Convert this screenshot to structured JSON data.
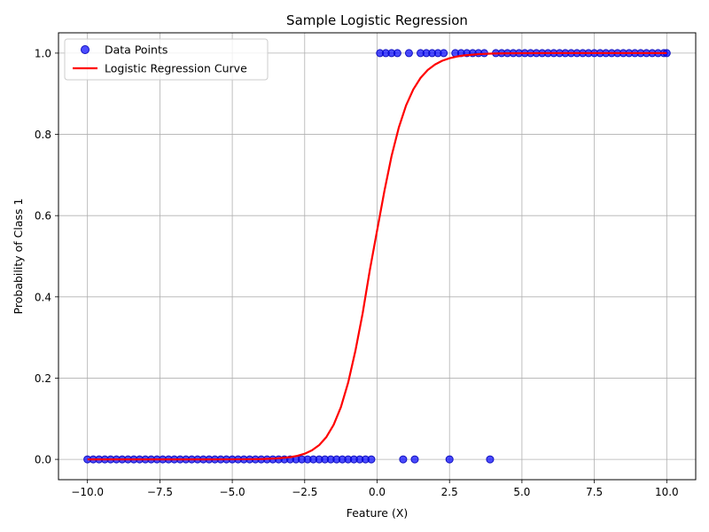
{
  "chart_data": {
    "type": "scatter",
    "title": "Sample Logistic Regression",
    "xlabel": "Feature (X)",
    "ylabel": "Probability of Class 1",
    "xlim": [
      -11,
      11
    ],
    "ylim": [
      -0.05,
      1.05
    ],
    "xticks": [
      -10.0,
      -7.5,
      -5.0,
      -2.5,
      0.0,
      2.5,
      5.0,
      7.5,
      10.0
    ],
    "xtick_labels": [
      "−10.0",
      "−7.5",
      "−5.0",
      "−2.5",
      "0.0",
      "2.5",
      "5.0",
      "7.5",
      "10.0"
    ],
    "yticks": [
      0.0,
      0.2,
      0.4,
      0.6,
      0.8,
      1.0
    ],
    "ytick_labels": [
      "0.0",
      "0.2",
      "0.4",
      "0.6",
      "0.8",
      "1.0"
    ],
    "grid": true,
    "legend_position": "upper-left",
    "legend": [
      "Data Points",
      "Logistic Regression Curve"
    ],
    "series": [
      {
        "name": "Data Points",
        "kind": "scatter",
        "color": "#0000ff",
        "edge_color": "#1010c0",
        "x": [
          -10.0,
          -9.8,
          -9.6,
          -9.4,
          -9.2,
          -9.0,
          -8.8,
          -8.6,
          -8.4,
          -8.2,
          -8.0,
          -7.8,
          -7.6,
          -7.4,
          -7.2,
          -7.0,
          -6.8,
          -6.6,
          -6.4,
          -6.2,
          -6.0,
          -5.8,
          -5.6,
          -5.4,
          -5.2,
          -5.0,
          -4.8,
          -4.6,
          -4.4,
          -4.2,
          -4.0,
          -3.8,
          -3.6,
          -3.4,
          -3.2,
          -3.0,
          -2.8,
          -2.6,
          -2.4,
          -2.2,
          -2.0,
          -1.8,
          -1.6,
          -1.4,
          -1.2,
          -1.0,
          -0.8,
          -0.6,
          -0.4,
          -0.2,
          0.9,
          1.3,
          2.5,
          3.9,
          0.1,
          0.3,
          0.5,
          0.7,
          1.1,
          1.5,
          1.7,
          1.9,
          2.1,
          2.3,
          2.7,
          2.9,
          3.1,
          3.3,
          3.5,
          3.7,
          4.1,
          4.3,
          4.5,
          4.7,
          4.9,
          5.1,
          5.3,
          5.5,
          5.7,
          5.9,
          6.1,
          6.3,
          6.5,
          6.7,
          6.9,
          7.1,
          7.3,
          7.5,
          7.7,
          7.9,
          8.1,
          8.3,
          8.5,
          8.7,
          8.9,
          9.1,
          9.3,
          9.5,
          9.7,
          9.9,
          10.0
        ],
        "y": [
          0,
          0,
          0,
          0,
          0,
          0,
          0,
          0,
          0,
          0,
          0,
          0,
          0,
          0,
          0,
          0,
          0,
          0,
          0,
          0,
          0,
          0,
          0,
          0,
          0,
          0,
          0,
          0,
          0,
          0,
          0,
          0,
          0,
          0,
          0,
          0,
          0,
          0,
          0,
          0,
          0,
          0,
          0,
          0,
          0,
          0,
          0,
          0,
          0,
          0,
          0,
          0,
          0,
          0,
          1,
          1,
          1,
          1,
          1,
          1,
          1,
          1,
          1,
          1,
          1,
          1,
          1,
          1,
          1,
          1,
          1,
          1,
          1,
          1,
          1,
          1,
          1,
          1,
          1,
          1,
          1,
          1,
          1,
          1,
          1,
          1,
          1,
          1,
          1,
          1,
          1,
          1,
          1,
          1,
          1,
          1,
          1,
          1,
          1,
          1,
          1
        ]
      },
      {
        "name": "Logistic Regression Curve",
        "kind": "line",
        "color": "#ff0000",
        "x": [
          -10.0,
          -9.0,
          -8.0,
          -7.0,
          -6.0,
          -5.0,
          -4.5,
          -4.0,
          -3.5,
          -3.0,
          -2.75,
          -2.5,
          -2.25,
          -2.0,
          -1.75,
          -1.5,
          -1.25,
          -1.0,
          -0.75,
          -0.5,
          -0.25,
          0.0,
          0.25,
          0.5,
          0.75,
          1.0,
          1.25,
          1.5,
          1.75,
          2.0,
          2.25,
          2.5,
          2.75,
          3.0,
          3.5,
          4.0,
          4.5,
          5.0,
          6.0,
          7.0,
          8.0,
          9.0,
          10.0
        ],
        "y": [
          0.0,
          0.0,
          0.0,
          0.0,
          0.0,
          0.0001,
          0.0003,
          0.0008,
          0.0021,
          0.0054,
          0.0087,
          0.0139,
          0.0222,
          0.0351,
          0.0551,
          0.0851,
          0.1286,
          0.1888,
          0.2669,
          0.3591,
          0.4664,
          0.5634,
          0.6597,
          0.7469,
          0.817,
          0.8712,
          0.9108,
          0.939,
          0.9586,
          0.9719,
          0.9812,
          0.9874,
          0.9916,
          0.9944,
          0.9975,
          0.9989,
          0.9995,
          0.9998,
          1.0,
          1.0,
          1.0,
          1.0,
          1.0
        ]
      }
    ]
  }
}
